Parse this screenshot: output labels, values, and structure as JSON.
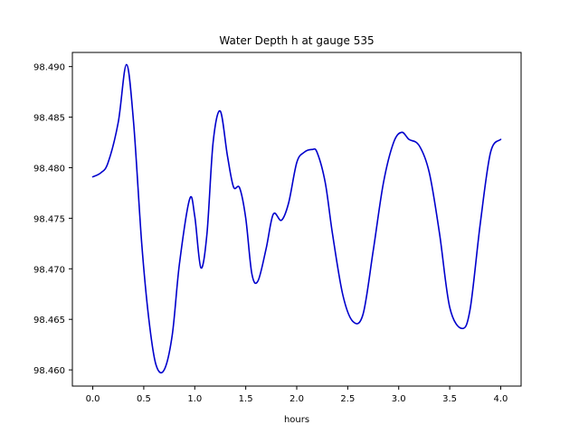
{
  "chart_data": {
    "type": "line",
    "title": "Water Depth h at gauge 535",
    "xlabel": "hours",
    "ylabel": "",
    "xlim": [
      -0.2,
      4.2
    ],
    "ylim": [
      98.4584,
      98.4914
    ],
    "x_ticks": [
      0.0,
      0.5,
      1.0,
      1.5,
      2.0,
      2.5,
      3.0,
      3.5,
      4.0
    ],
    "x_tick_labels": [
      "0.0",
      "0.5",
      "1.0",
      "1.5",
      "2.0",
      "2.5",
      "3.0",
      "3.5",
      "4.0"
    ],
    "y_ticks": [
      98.46,
      98.465,
      98.47,
      98.475,
      98.48,
      98.485,
      98.49
    ],
    "y_tick_labels": [
      "98.460",
      "98.465",
      "98.470",
      "98.475",
      "98.480",
      "98.485",
      "98.490"
    ],
    "grid": false,
    "series": [
      {
        "color": "#0000cc",
        "x": [
          0.0,
          0.08,
          0.15,
          0.25,
          0.33,
          0.4,
          0.48,
          0.55,
          0.62,
          0.7,
          0.78,
          0.85,
          0.95,
          1.0,
          1.06,
          1.12,
          1.18,
          1.25,
          1.32,
          1.38,
          1.44,
          1.5,
          1.56,
          1.62,
          1.7,
          1.77,
          1.85,
          1.92,
          2.0,
          2.07,
          2.15,
          2.2,
          2.28,
          2.35,
          2.45,
          2.55,
          2.65,
          2.75,
          2.85,
          2.95,
          3.03,
          3.1,
          3.2,
          3.3,
          3.4,
          3.5,
          3.62,
          3.7,
          3.8,
          3.9,
          4.0
        ],
        "y": [
          98.4791,
          98.4795,
          98.4805,
          98.4845,
          98.4902,
          98.4845,
          98.4725,
          98.465,
          98.4605,
          98.46,
          98.4635,
          98.4705,
          98.4769,
          98.4752,
          98.4701,
          98.4735,
          98.4825,
          98.4856,
          98.4812,
          98.4781,
          98.478,
          98.475,
          98.4695,
          98.4688,
          98.472,
          98.4754,
          98.4748,
          98.4765,
          98.4805,
          98.4815,
          98.4818,
          98.4815,
          98.4785,
          98.4735,
          98.4675,
          98.4648,
          98.4655,
          98.4718,
          98.4785,
          98.4825,
          98.4835,
          98.4828,
          98.4822,
          98.4795,
          98.4735,
          98.4662,
          98.4641,
          98.466,
          98.4745,
          98.4815,
          98.4828
        ]
      }
    ]
  }
}
